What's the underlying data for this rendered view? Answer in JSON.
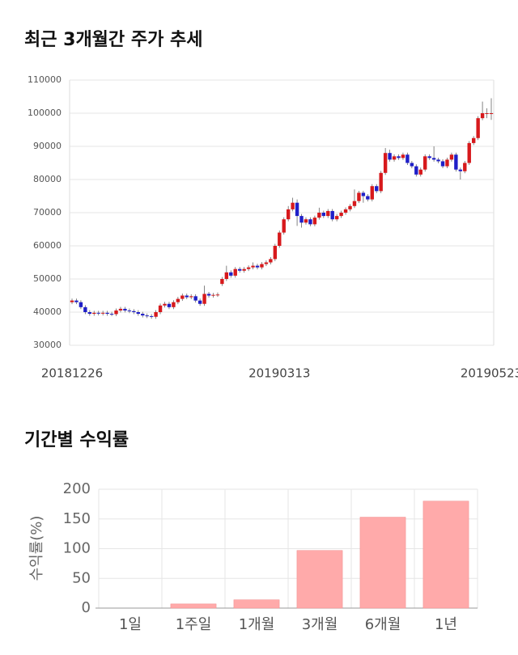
{
  "chart_data": [
    {
      "type": "candlestick",
      "title": "최근 3개월간 주가 추세",
      "categories": [
        "20181226",
        null,
        null,
        null,
        null,
        null,
        null,
        null,
        null,
        null,
        null,
        null,
        null,
        null,
        null,
        null,
        null,
        null,
        null,
        null,
        null,
        null,
        null,
        null,
        null,
        null,
        null,
        null,
        null,
        null,
        null,
        null,
        null,
        null,
        null,
        null,
        null,
        null,
        null,
        null,
        null,
        null,
        null,
        null,
        null,
        null,
        null,
        "20190313",
        null,
        null,
        null,
        null,
        null,
        null,
        null,
        null,
        null,
        null,
        null,
        null,
        null,
        null,
        null,
        null,
        null,
        null,
        null,
        null,
        null,
        null,
        null,
        null,
        null,
        null,
        null,
        null,
        null,
        null,
        null,
        null,
        null,
        null,
        null,
        null,
        null,
        null,
        null,
        null,
        null,
        null,
        null,
        null,
        null,
        null,
        null,
        "20190523"
      ],
      "open": [
        43000,
        43500,
        43000,
        41500,
        40000,
        39500,
        39800,
        39600,
        39800,
        39500,
        39400,
        40500,
        41000,
        40500,
        40300,
        40000,
        39500,
        39000,
        38800,
        38600,
        40000,
        42000,
        42500,
        41500,
        43000,
        44000,
        45000,
        44500,
        44800,
        43500,
        42500,
        45500,
        45000,
        45200,
        48500,
        50000,
        52000,
        51000,
        53000,
        52500,
        53000,
        53500,
        54000,
        53500,
        54500,
        55000,
        56000,
        60000,
        64000,
        68000,
        71000,
        73000,
        69000,
        67000,
        68000,
        66500,
        68500,
        70000,
        69000,
        70500,
        68000,
        69000,
        70000,
        71000,
        72000,
        73500,
        76000,
        75000,
        74000,
        78000,
        76500,
        82000,
        88000,
        86000,
        87000,
        86500,
        87500,
        85000,
        84000,
        81500,
        83000,
        87000,
        86500,
        86000,
        85500,
        84000,
        86000,
        87500,
        83000,
        82500,
        85000,
        91000,
        92500,
        98500,
        100000,
        100000
      ],
      "high": [
        44100,
        44100,
        43600,
        42100,
        40600,
        40400,
        40400,
        40400,
        40400,
        40100,
        41100,
        41600,
        41600,
        41100,
        40900,
        40600,
        40100,
        39600,
        39400,
        40600,
        42600,
        43100,
        43100,
        43600,
        44600,
        45600,
        45600,
        45400,
        45400,
        44100,
        48000,
        46100,
        45800,
        45900,
        50600,
        54000,
        52600,
        53600,
        53600,
        53600,
        54100,
        55000,
        54600,
        55100,
        55600,
        56600,
        60600,
        64600,
        68600,
        72000,
        74500,
        74000,
        69600,
        68600,
        68600,
        69100,
        71500,
        70600,
        71100,
        71100,
        69600,
        70600,
        71600,
        72600,
        77000,
        76600,
        76600,
        75600,
        78600,
        78600,
        82600,
        89500,
        89000,
        87600,
        87600,
        88100,
        88100,
        85600,
        84600,
        83600,
        87600,
        87600,
        90000,
        86600,
        86100,
        86600,
        88100,
        88100,
        83600,
        85600,
        91600,
        93100,
        99100,
        103500,
        101500,
        104500
      ],
      "low": [
        42400,
        42400,
        40900,
        39400,
        38900,
        38900,
        39000,
        39000,
        38900,
        38800,
        38800,
        39900,
        39900,
        39700,
        39400,
        38900,
        38400,
        38200,
        38000,
        38000,
        39400,
        41400,
        40900,
        40900,
        42400,
        43400,
        43900,
        43900,
        42900,
        41900,
        41900,
        44400,
        44400,
        44600,
        47900,
        49400,
        50400,
        50400,
        51900,
        51900,
        52400,
        52900,
        52900,
        52900,
        53900,
        54400,
        55400,
        59400,
        63400,
        67400,
        70400,
        66000,
        65500,
        66400,
        65900,
        65900,
        67900,
        68400,
        68400,
        67400,
        67400,
        68400,
        69400,
        70400,
        71400,
        72900,
        73000,
        73400,
        73400,
        75900,
        75900,
        81400,
        85400,
        85400,
        85900,
        85900,
        84400,
        83400,
        80900,
        80900,
        82400,
        85900,
        85400,
        84900,
        83400,
        83400,
        85400,
        82400,
        80000,
        81900,
        84400,
        90400,
        91900,
        97900,
        98500,
        98000
      ],
      "close": [
        43500,
        43000,
        41500,
        40000,
        39500,
        39800,
        39600,
        39800,
        39500,
        39400,
        40500,
        41000,
        40500,
        40300,
        40000,
        39500,
        39000,
        38800,
        38600,
        40000,
        42000,
        42500,
        41500,
        43000,
        44000,
        45000,
        44500,
        44800,
        43500,
        42500,
        45500,
        45000,
        45200,
        45300,
        50000,
        52000,
        51000,
        53000,
        52500,
        53000,
        53500,
        54000,
        53500,
        54500,
        55000,
        56000,
        60000,
        64000,
        68000,
        71000,
        73000,
        69000,
        67000,
        68000,
        66500,
        68500,
        70000,
        69000,
        70500,
        68000,
        69000,
        70000,
        71000,
        72000,
        73500,
        76000,
        75000,
        74000,
        78000,
        76500,
        82000,
        88000,
        86000,
        87000,
        86500,
        87500,
        85000,
        84000,
        81500,
        83000,
        87000,
        86500,
        86000,
        85500,
        84000,
        86000,
        87500,
        83000,
        82500,
        85000,
        91000,
        92500,
        98500,
        100000,
        100000,
        100000
      ],
      "up_color": "#d7191c",
      "down_color": "#1f1fc8",
      "ylim": [
        30000,
        110000
      ],
      "yticks": [
        30000,
        40000,
        50000,
        60000,
        70000,
        80000,
        90000,
        100000,
        110000
      ],
      "grid": true
    },
    {
      "type": "bar",
      "title": "기간별 수익률",
      "ylabel": "수익률(%)",
      "categories": [
        "1일",
        "1주일",
        "1개월",
        "3개월",
        "6개월",
        "1년"
      ],
      "values": [
        0,
        7,
        14,
        97,
        153,
        180
      ],
      "color": "#ffaaaa",
      "ylim": [
        0,
        200
      ],
      "yticks": [
        0,
        50,
        100,
        150,
        200
      ],
      "grid": true
    }
  ]
}
